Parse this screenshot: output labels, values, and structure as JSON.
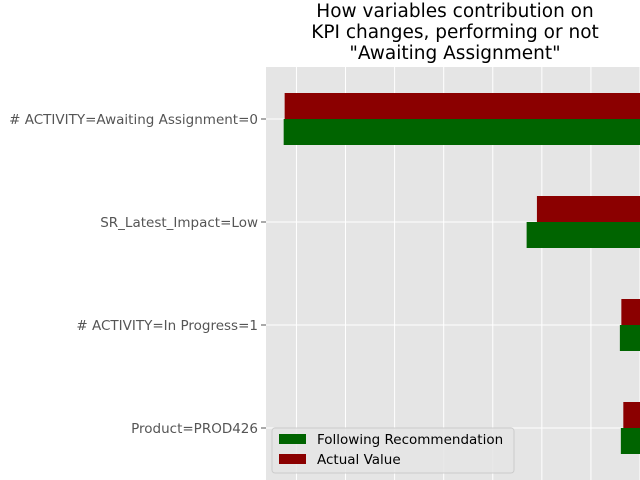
{
  "chart_data": {
    "type": "bar",
    "orientation": "horizontal",
    "title_lines": [
      "How variables contribution on",
      "KPI changes, performing or not",
      "\"Awaiting Assignment\""
    ],
    "xlabel": "",
    "ylabel": "",
    "categories": [
      "# ACTIVITY=Awaiting Assignment=0",
      "SR_Latest_Impact=Low",
      "# ACTIVITY=In Progress=1",
      "Product=PROD426"
    ],
    "series": [
      {
        "name": "Following Recommendation",
        "color": "#006400",
        "values": [
          0.726,
          0.231,
          0.041,
          0.039
        ]
      },
      {
        "name": "Actual Value",
        "color": "#8b0000",
        "values": [
          0.724,
          0.21,
          0.038,
          0.034
        ]
      }
    ],
    "xlim": [
      0,
      0.762
    ],
    "grid": true,
    "style": "ggplot",
    "background_color": "#e5e5e5",
    "legend_position": "lower-left"
  }
}
